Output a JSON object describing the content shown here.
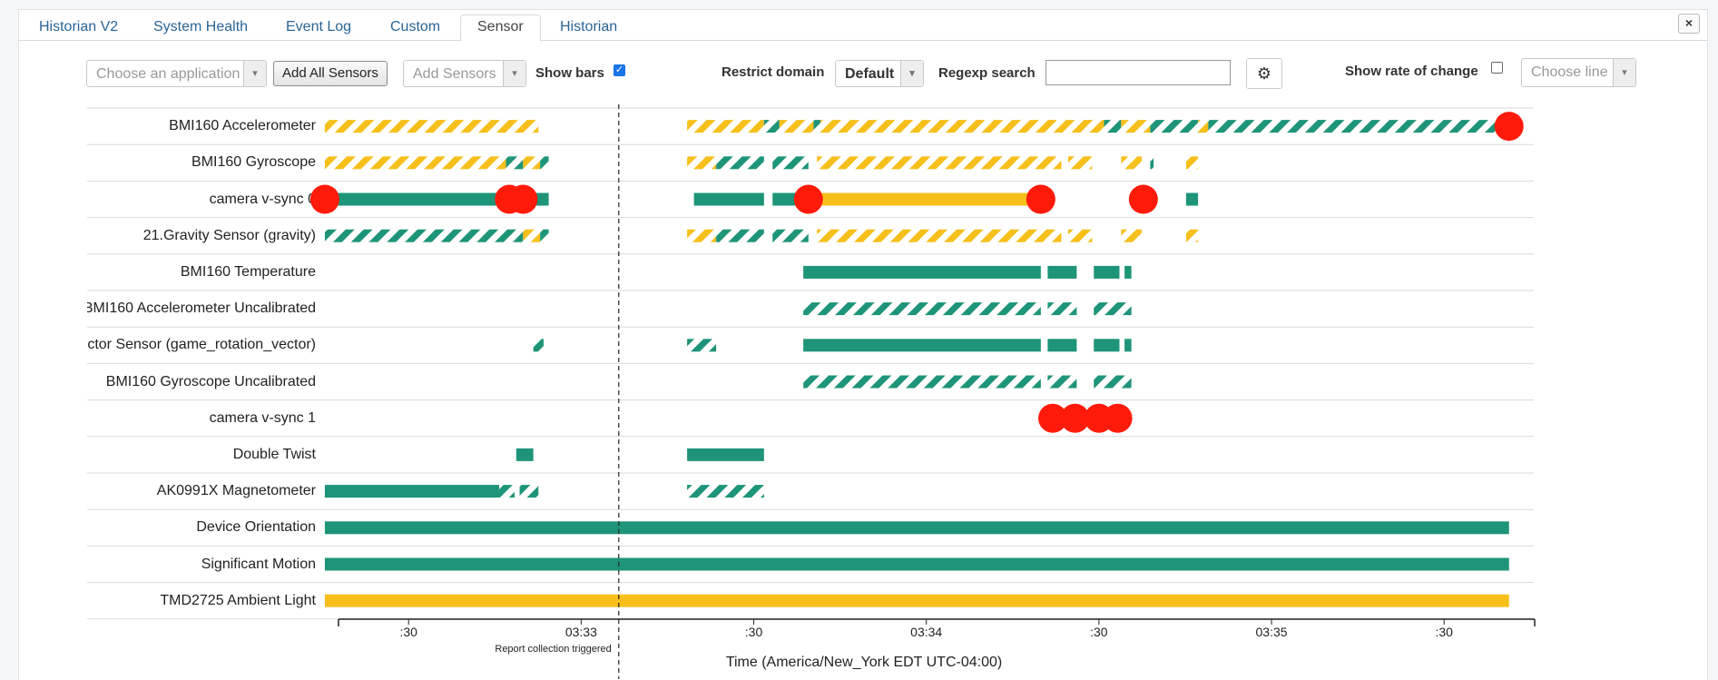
{
  "tabs": [
    {
      "label": "Historian V2",
      "active": false
    },
    {
      "label": "System Health",
      "active": false
    },
    {
      "label": "Event Log",
      "active": false
    },
    {
      "label": "Custom",
      "active": false
    },
    {
      "label": "Sensor",
      "active": true
    },
    {
      "label": "Historian",
      "active": false
    }
  ],
  "close_label": "×",
  "toolbar": {
    "app_placeholder": "Choose an application",
    "add_all_label": "Add All Sensors",
    "add_sensors_placeholder": "Add Sensors",
    "show_bars_label": "Show bars",
    "show_bars_checked": true,
    "restrict_domain_label": "Restrict domain",
    "restrict_domain_value": "Default",
    "regexp_label": "Regexp search",
    "regexp_value": "",
    "settings_icon": "gear-icon",
    "show_rate_label": "Show rate of change",
    "show_rate_checked": false,
    "choose_line_placeholder": "Choose line"
  },
  "colors": {
    "teal": "#1e9478",
    "yellow": "#f6bf1a",
    "red": "#ff1a0a",
    "grid": "#d9d9d9",
    "axis": "#222222"
  },
  "sensors": [
    {
      "label": "BMI160 Accelerometer",
      "segments": [
        [
          2.42,
          3.48,
          "sy"
        ],
        [
          3.48,
          3.58,
          "sy"
        ],
        [
          3.58,
          3.67,
          "sy"
        ],
        [
          4.54,
          4.99,
          "sy"
        ],
        [
          4.99,
          5.08,
          "st"
        ],
        [
          5.08,
          5.28,
          "sy"
        ],
        [
          5.28,
          5.32,
          "st"
        ],
        [
          5.32,
          6.98,
          "sy"
        ],
        [
          6.98,
          7.08,
          "st"
        ],
        [
          7.08,
          7.25,
          "sy"
        ],
        [
          7.25,
          7.53,
          "st"
        ],
        [
          7.53,
          7.59,
          "sy"
        ],
        [
          7.59,
          9.35,
          "st"
        ]
      ],
      "markers": [
        9.35
      ]
    },
    {
      "label": "BMI160 Gyroscope",
      "segments": [
        [
          2.42,
          3.48,
          "sy"
        ],
        [
          3.48,
          3.58,
          "st"
        ],
        [
          3.58,
          3.68,
          "sy"
        ],
        [
          3.68,
          3.73,
          "st"
        ],
        [
          4.54,
          4.71,
          "sy"
        ],
        [
          4.71,
          4.99,
          "st"
        ],
        [
          5.04,
          5.25,
          "st"
        ],
        [
          5.3,
          6.73,
          "sy"
        ],
        [
          6.77,
          6.91,
          "sy"
        ],
        [
          7.08,
          7.2,
          "sy"
        ],
        [
          7.25,
          7.27,
          "st"
        ],
        [
          7.46,
          7.53,
          "sy"
        ]
      ],
      "markers": []
    },
    {
      "label": "camera v-sync 0",
      "segments": [
        [
          2.42,
          3.73,
          "t"
        ],
        [
          4.58,
          4.99,
          "t"
        ],
        [
          5.04,
          5.25,
          "t"
        ],
        [
          5.25,
          6.61,
          "y"
        ],
        [
          7.46,
          7.53,
          "t"
        ]
      ],
      "markers": [
        2.42,
        3.5,
        3.58,
        5.25,
        6.61,
        7.21
      ]
    },
    {
      "label": "21.Gravity Sensor (gravity)",
      "segments": [
        [
          2.42,
          3.48,
          "st"
        ],
        [
          3.48,
          3.58,
          "st"
        ],
        [
          3.58,
          3.68,
          "sy"
        ],
        [
          3.68,
          3.73,
          "st"
        ],
        [
          4.54,
          4.71,
          "sy"
        ],
        [
          4.71,
          4.99,
          "st"
        ],
        [
          5.04,
          5.25,
          "st"
        ],
        [
          5.3,
          6.73,
          "sy"
        ],
        [
          6.77,
          6.91,
          "sy"
        ],
        [
          7.08,
          7.2,
          "sy"
        ],
        [
          7.46,
          7.53,
          "sy"
        ]
      ],
      "markers": []
    },
    {
      "label": "BMI160 Temperature",
      "segments": [
        [
          5.22,
          6.61,
          "t"
        ],
        [
          6.65,
          6.82,
          "t"
        ],
        [
          6.92,
          7.07,
          "t"
        ],
        [
          7.1,
          7.14,
          "t"
        ]
      ],
      "markers": []
    },
    {
      "label": "BMI160 Accelerometer Uncalibrated",
      "segments": [
        [
          5.22,
          6.61,
          "st"
        ],
        [
          6.65,
          6.82,
          "st"
        ],
        [
          6.92,
          7.14,
          "st"
        ]
      ],
      "markers": []
    },
    {
      "label": "Game Rotation Vector Sensor (game_rotation_vector)",
      "segments": [
        [
          3.64,
          3.7,
          "st"
        ],
        [
          4.54,
          4.71,
          "st"
        ],
        [
          5.22,
          6.61,
          "t"
        ],
        [
          6.65,
          6.82,
          "t"
        ],
        [
          6.92,
          7.07,
          "t"
        ],
        [
          7.1,
          7.14,
          "t"
        ]
      ],
      "markers": []
    },
    {
      "label": "BMI160 Gyroscope Uncalibrated",
      "segments": [
        [
          5.22,
          6.61,
          "st"
        ],
        [
          6.65,
          6.82,
          "st"
        ],
        [
          6.92,
          7.14,
          "st"
        ]
      ],
      "markers": []
    },
    {
      "label": "camera v-sync 1",
      "segments": [],
      "markers": [
        6.68,
        6.81,
        6.95,
        7.06
      ]
    },
    {
      "label": "Double Twist",
      "segments": [
        [
          3.54,
          3.64,
          "t"
        ],
        [
          4.54,
          4.99,
          "t"
        ]
      ],
      "markers": []
    },
    {
      "label": "AK0991X Magnetometer",
      "segments": [
        [
          2.42,
          3.44,
          "t"
        ],
        [
          3.44,
          3.53,
          "st"
        ],
        [
          3.56,
          3.67,
          "st"
        ],
        [
          4.54,
          4.99,
          "st"
        ]
      ],
      "markers": []
    },
    {
      "label": "Device Orientation",
      "segments": [
        [
          2.42,
          9.35,
          "t"
        ]
      ],
      "markers": []
    },
    {
      "label": "Significant Motion",
      "segments": [
        [
          2.42,
          9.35,
          "t"
        ]
      ],
      "markers": []
    },
    {
      "label": "TMD2725 Ambient Light",
      "segments": [
        [
          2.42,
          9.35,
          "y"
        ]
      ],
      "markers": []
    }
  ],
  "x_axis": {
    "domain_min": 2.5,
    "domain_max": 9.5,
    "ticks": [
      {
        "value": 2.91,
        "label": ":30"
      },
      {
        "value": 3.92,
        "label": "03:33"
      },
      {
        "value": 4.93,
        "label": ":30"
      },
      {
        "value": 5.94,
        "label": "03:34"
      },
      {
        "value": 6.95,
        "label": ":30"
      },
      {
        "value": 7.96,
        "label": "03:35"
      },
      {
        "value": 8.97,
        "label": ":30"
      }
    ],
    "title": "Time (America/New_York EDT UTC-04:00)"
  },
  "report_marker": {
    "value": 4.14,
    "label": "Report collection triggered"
  }
}
